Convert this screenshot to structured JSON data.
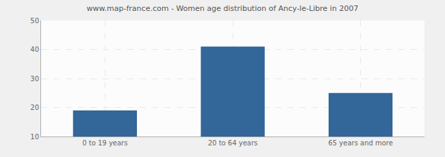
{
  "chart_data": {
    "type": "bar",
    "title": "www.map-france.com - Women age distribution of Ancy-le-Libre in 2007",
    "categories": [
      "0 to 19 years",
      "20 to 64 years",
      "65 years and more"
    ],
    "values": [
      19,
      41,
      25
    ],
    "color": "#336699",
    "ylim": [
      10,
      50
    ],
    "yticks": [
      10,
      20,
      30,
      40,
      50
    ],
    "grid": true
  }
}
